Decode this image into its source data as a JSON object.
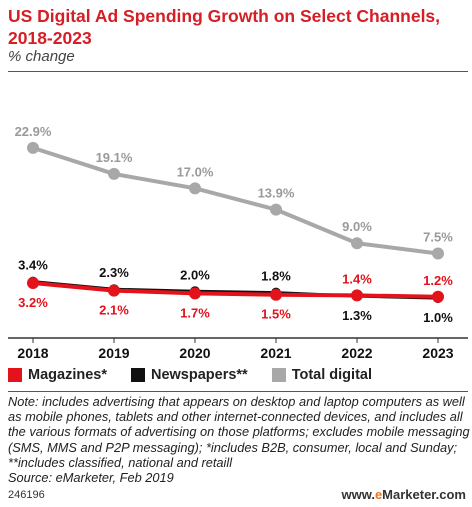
{
  "chart_data": {
    "type": "line",
    "title": "US Digital Ad Spending Growth on Select Channels, 2018-2023",
    "subtitle": "% change",
    "x": [
      "2018",
      "2019",
      "2020",
      "2021",
      "2022",
      "2023"
    ],
    "series": [
      {
        "name": "Magazines*",
        "color": "#e3121b",
        "values": [
          3.2,
          2.1,
          1.7,
          1.5,
          1.4,
          1.2
        ],
        "labels": [
          "3.2%",
          "2.1%",
          "1.7%",
          "1.5%",
          "1.4%",
          "1.2%"
        ]
      },
      {
        "name": "Newspapers**",
        "color": "#111111",
        "values": [
          3.4,
          2.3,
          2.0,
          1.8,
          1.3,
          1.0
        ],
        "labels": [
          "3.4%",
          "2.3%",
          "2.0%",
          "1.8%",
          "1.3%",
          "1.0%"
        ]
      },
      {
        "name": "Total digital",
        "color": "#a8a8a8",
        "values": [
          22.9,
          19.1,
          17.0,
          13.9,
          9.0,
          7.5
        ],
        "labels": [
          "22.9%",
          "19.1%",
          "17.0%",
          "13.9%",
          "9.0%",
          "7.5%"
        ]
      }
    ],
    "ylim": [
      0,
      25
    ],
    "grid": false,
    "legend": "bottom"
  },
  "note": "Note: includes advertising that appears on desktop and laptop computers as well as mobile phones, tablets and other internet-connected devices, and includes all the various formats of advertising on those platforms; excludes mobile messaging (SMS, MMS and P2P messaging); *includes B2B, consumer, local and Sunday; **includes classified, national and retaill",
  "source": "Source: eMarketer, Feb 2019",
  "footer": {
    "chart_id": "246196",
    "brand": "www.eMarketer.com"
  }
}
